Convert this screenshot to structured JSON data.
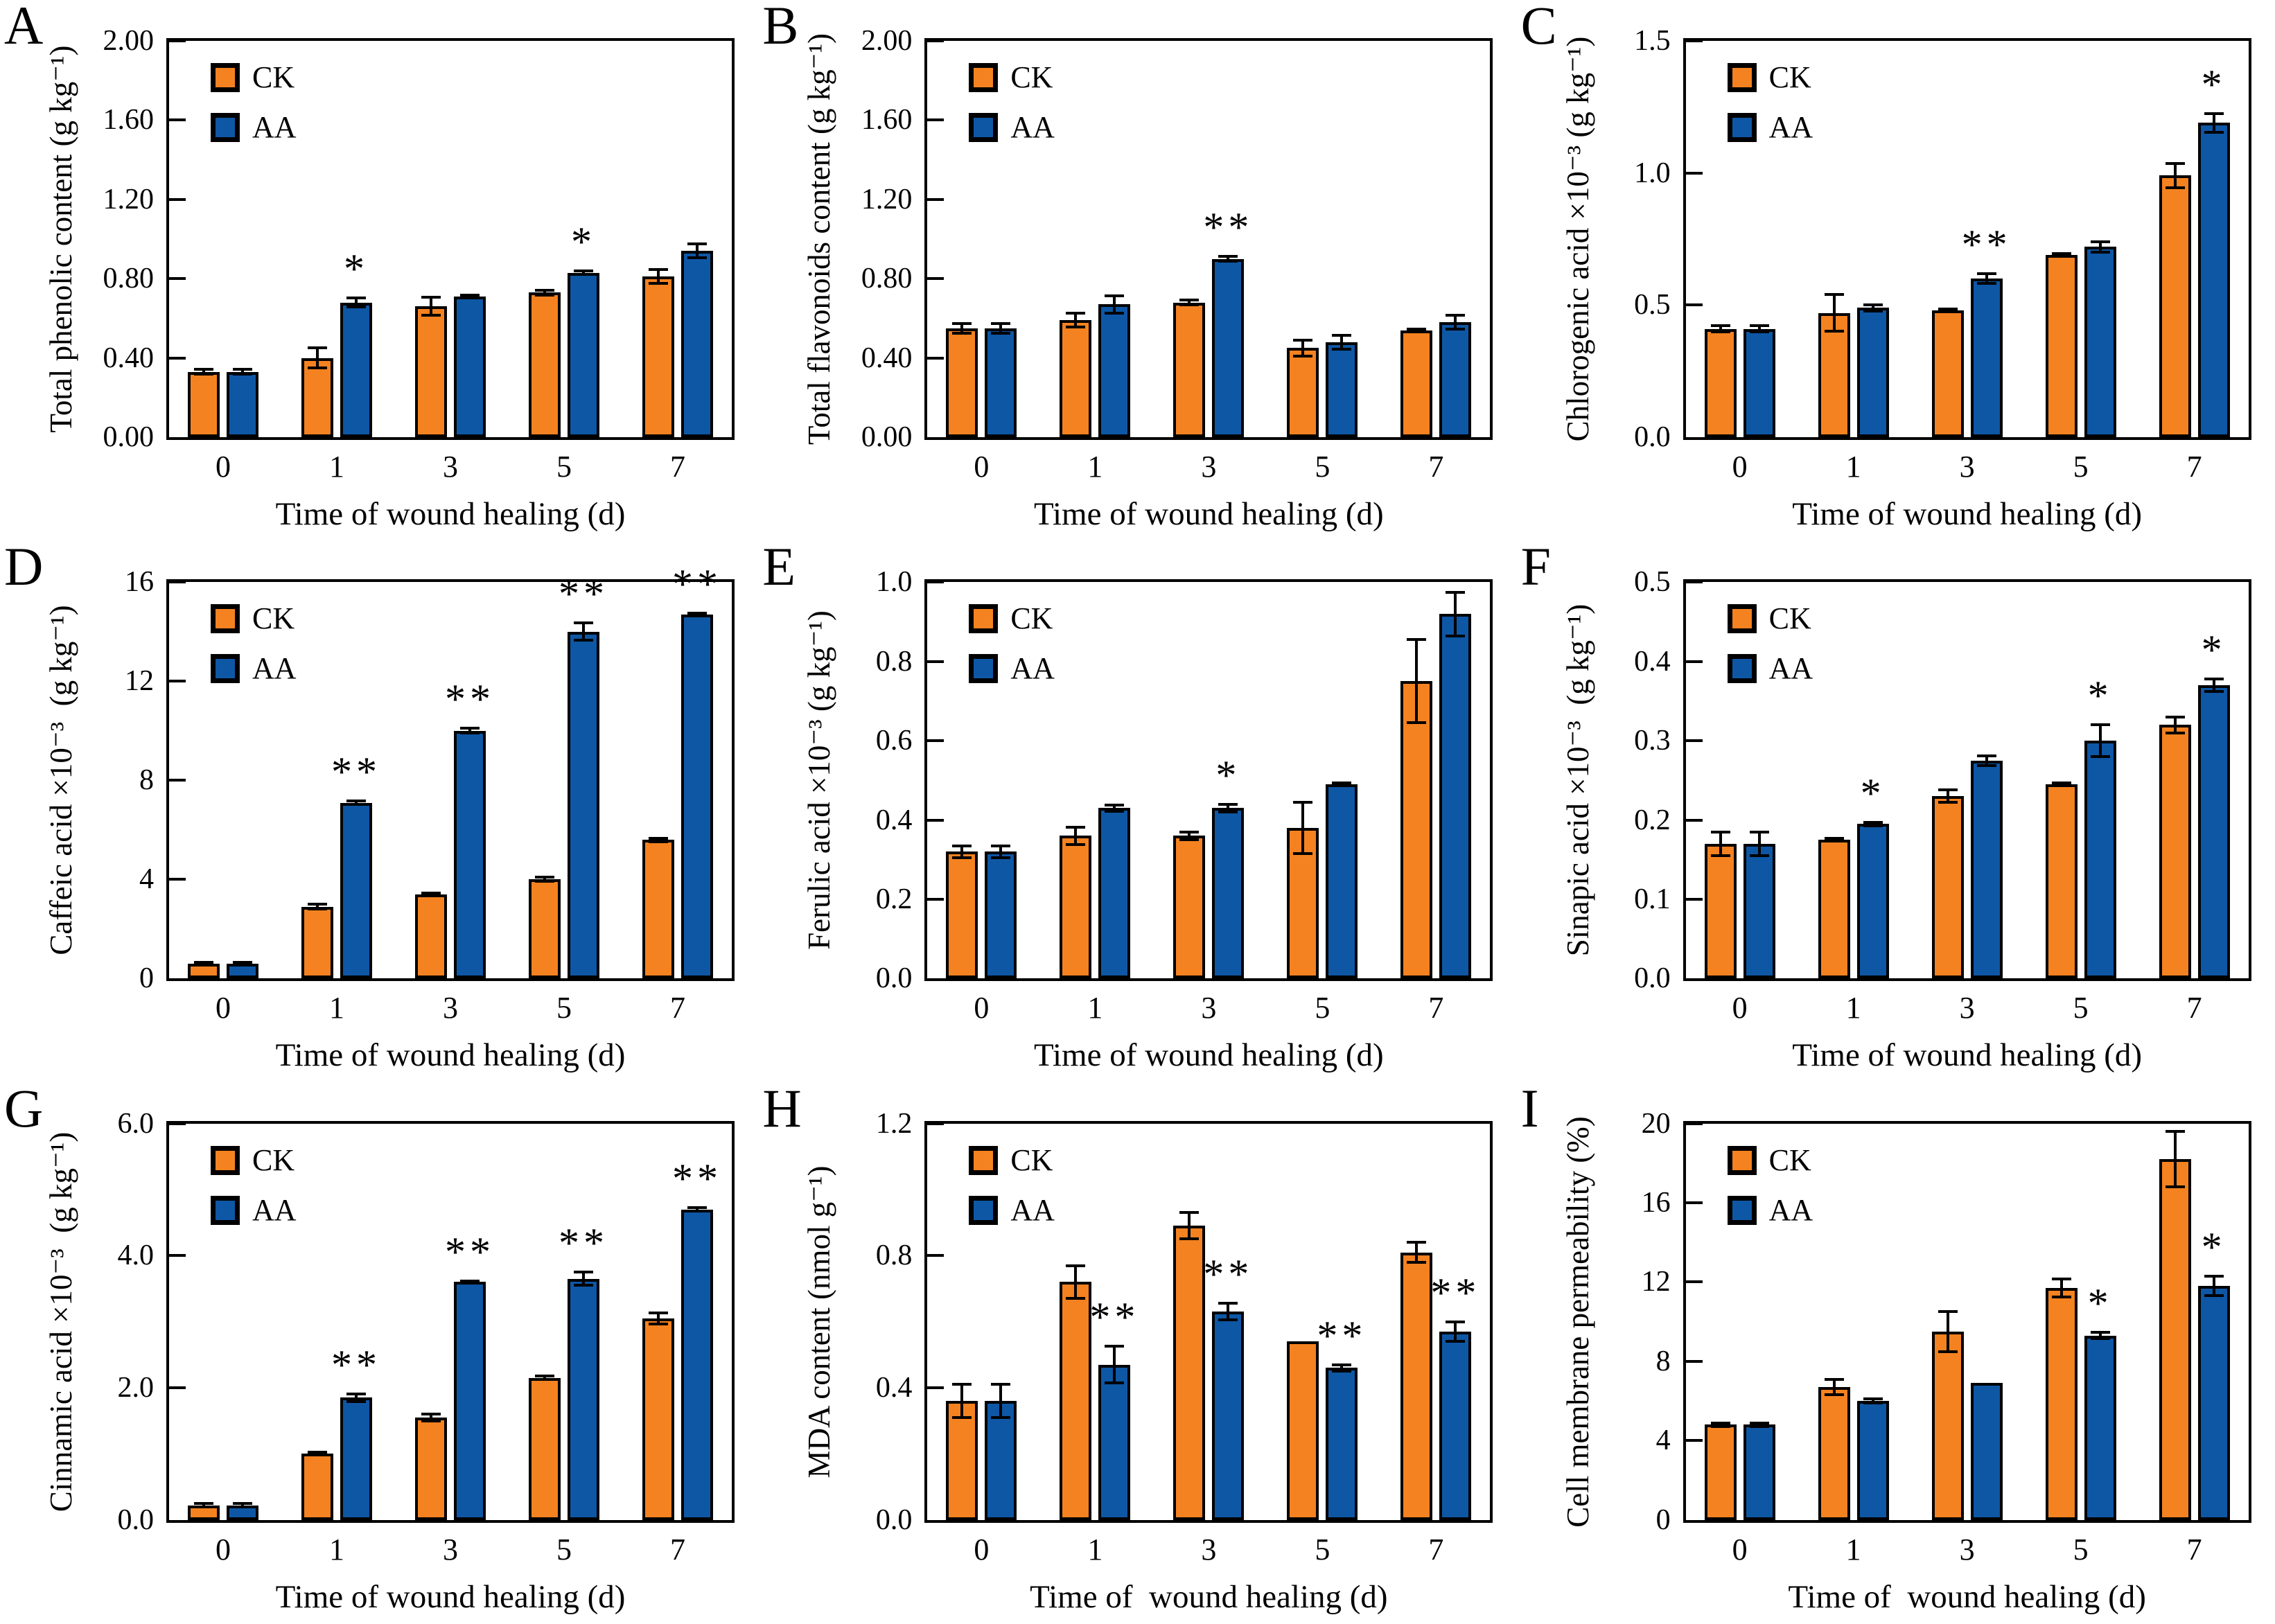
{
  "figure": {
    "background": "#ffffff",
    "axis_color": "#000000",
    "series_colors": {
      "CK": "#F58220",
      "AA": "#0E57A5"
    },
    "legend_labels": [
      "CK",
      "AA"
    ],
    "x_categories": [
      "0",
      "1",
      "3",
      "5",
      "7"
    ]
  },
  "chart_data": [
    {
      "panel": "A",
      "type": "bar",
      "ylabel": "Total phenolic content (g kg⁻¹)",
      "xlabel": "Time of wound healing (d)",
      "categories": [
        "0",
        "1",
        "3",
        "5",
        "7"
      ],
      "ylim": [
        0,
        2.0
      ],
      "yticks": [
        "0.00",
        "0.40",
        "0.80",
        "1.20",
        "1.60",
        "2.00"
      ],
      "legend": [
        "CK",
        "AA"
      ],
      "series": [
        {
          "name": "CK",
          "values": [
            0.33,
            0.4,
            0.66,
            0.73,
            0.81
          ],
          "errors": [
            0.012,
            0.05,
            0.045,
            0.012,
            0.035
          ]
        },
        {
          "name": "AA",
          "values": [
            0.33,
            0.68,
            0.71,
            0.83,
            0.94
          ],
          "errors": [
            0.012,
            0.022,
            0.008,
            0.01,
            0.035
          ]
        }
      ],
      "sig": [
        "",
        "*",
        "",
        "*",
        ""
      ]
    },
    {
      "panel": "B",
      "type": "bar",
      "ylabel": "Total flavonoids content (g kg⁻¹)",
      "xlabel": "Time of wound healing (d)",
      "categories": [
        "0",
        "1",
        "3",
        "5",
        "7"
      ],
      "ylim": [
        0,
        2.0
      ],
      "yticks": [
        "0.00",
        "0.40",
        "0.80",
        "1.20",
        "1.60",
        "2.00"
      ],
      "legend": [
        "CK",
        "AA"
      ],
      "series": [
        {
          "name": "CK",
          "values": [
            0.55,
            0.59,
            0.68,
            0.45,
            0.54
          ],
          "errors": [
            0.025,
            0.035,
            0.012,
            0.04,
            0.006
          ]
        },
        {
          "name": "AA",
          "values": [
            0.55,
            0.67,
            0.9,
            0.48,
            0.58
          ],
          "errors": [
            0.025,
            0.045,
            0.012,
            0.035,
            0.035
          ]
        }
      ],
      "sig": [
        "",
        "",
        "**",
        "",
        ""
      ]
    },
    {
      "panel": "C",
      "type": "bar",
      "ylabel": "Chlorogenic acid ×10⁻³ (g kg⁻¹)",
      "xlabel": "Time of wound healing (d)",
      "categories": [
        "0",
        "1",
        "3",
        "5",
        "7"
      ],
      "ylim": [
        0,
        1.5
      ],
      "yticks": [
        "0.0",
        "0.5",
        "1.0",
        "1.5"
      ],
      "legend": [
        "CK",
        "AA"
      ],
      "series": [
        {
          "name": "CK",
          "values": [
            0.41,
            0.47,
            0.48,
            0.69,
            0.99
          ],
          "errors": [
            0.012,
            0.07,
            0.005,
            0.004,
            0.045
          ]
        },
        {
          "name": "AA",
          "values": [
            0.41,
            0.49,
            0.6,
            0.72,
            1.19
          ],
          "errors": [
            0.012,
            0.012,
            0.018,
            0.02,
            0.035
          ]
        }
      ],
      "sig": [
        "",
        "",
        "**",
        "",
        "*"
      ]
    },
    {
      "panel": "D",
      "type": "bar",
      "ylabel": "Caffeic acid ×10⁻³  (g kg⁻¹)",
      "xlabel": "Time of wound healing (d)",
      "categories": [
        "0",
        "1",
        "3",
        "5",
        "7"
      ],
      "ylim": [
        0,
        16
      ],
      "yticks": [
        "0",
        "4",
        "8",
        "12",
        "16"
      ],
      "legend": [
        "CK",
        "AA"
      ],
      "series": [
        {
          "name": "CK",
          "values": [
            0.6,
            2.9,
            3.4,
            4.0,
            5.6
          ],
          "errors": [
            0.06,
            0.1,
            0.05,
            0.08,
            0.07
          ]
        },
        {
          "name": "AA",
          "values": [
            0.6,
            7.1,
            10.0,
            14.0,
            14.7
          ],
          "errors": [
            0.06,
            0.06,
            0.1,
            0.35,
            0.05
          ]
        }
      ],
      "sig": [
        "",
        "**",
        "**",
        "**",
        "**"
      ]
    },
    {
      "panel": "E",
      "type": "bar",
      "ylabel": "Ferulic acid ×10⁻³ (g kg⁻¹)",
      "xlabel": "Time of wound healing (d)",
      "categories": [
        "0",
        "1",
        "3",
        "5",
        "7"
      ],
      "ylim": [
        0,
        1.0
      ],
      "yticks": [
        "0.0",
        "0.2",
        "0.4",
        "0.6",
        "0.8",
        "1.0"
      ],
      "legend": [
        "CK",
        "AA"
      ],
      "series": [
        {
          "name": "CK",
          "values": [
            0.32,
            0.36,
            0.36,
            0.38,
            0.75
          ],
          "errors": [
            0.015,
            0.022,
            0.01,
            0.065,
            0.105
          ]
        },
        {
          "name": "AA",
          "values": [
            0.32,
            0.43,
            0.43,
            0.49,
            0.92
          ],
          "errors": [
            0.015,
            0.008,
            0.01,
            0.004,
            0.055
          ]
        }
      ],
      "sig": [
        "",
        "",
        "*",
        "",
        ""
      ]
    },
    {
      "panel": "F",
      "type": "bar",
      "ylabel": "Sinapic acid ×10⁻³  (g kg⁻¹)",
      "xlabel": "Time of wound healing (d)",
      "categories": [
        "0",
        "1",
        "3",
        "5",
        "7"
      ],
      "ylim": [
        0,
        0.5
      ],
      "yticks": [
        "0.0",
        "0.1",
        "0.2",
        "0.3",
        "0.4",
        "0.5"
      ],
      "legend": [
        "CK",
        "AA"
      ],
      "series": [
        {
          "name": "CK",
          "values": [
            0.17,
            0.175,
            0.23,
            0.245,
            0.32
          ],
          "errors": [
            0.015,
            0.002,
            0.008,
            0.002,
            0.01
          ]
        },
        {
          "name": "AA",
          "values": [
            0.17,
            0.195,
            0.275,
            0.3,
            0.37
          ],
          "errors": [
            0.015,
            0.002,
            0.006,
            0.02,
            0.008
          ]
        }
      ],
      "sig": [
        "",
        "*",
        "",
        "*",
        "*"
      ]
    },
    {
      "panel": "G",
      "type": "bar",
      "ylabel": "Cinnamic acid ×10⁻³  (g kg⁻¹)",
      "xlabel": "Time of wound healing (d)",
      "categories": [
        "0",
        "1",
        "3",
        "5",
        "7"
      ],
      "ylim": [
        0,
        6.0
      ],
      "yticks": [
        "0.0",
        "2.0",
        "4.0",
        "6.0"
      ],
      "legend": [
        "CK",
        "AA"
      ],
      "series": [
        {
          "name": "CK",
          "values": [
            0.22,
            1.0,
            1.55,
            2.15,
            3.05
          ],
          "errors": [
            0.025,
            0.02,
            0.05,
            0.025,
            0.08
          ]
        },
        {
          "name": "AA",
          "values": [
            0.22,
            1.85,
            3.6,
            3.65,
            4.7
          ],
          "errors": [
            0.025,
            0.06,
            0.02,
            0.1,
            0.03
          ]
        }
      ],
      "sig": [
        "",
        "**",
        "**",
        "**",
        "**"
      ]
    },
    {
      "panel": "H",
      "type": "bar",
      "ylabel": "MDA content (nmol g⁻¹)",
      "xlabel": "Time of  wound healing (d)",
      "categories": [
        "0",
        "1",
        "3",
        "5",
        "7"
      ],
      "ylim": [
        0,
        1.2
      ],
      "yticks": [
        "0.0",
        "0.4",
        "0.8",
        "1.2"
      ],
      "legend": [
        "CK",
        "AA"
      ],
      "series": [
        {
          "name": "CK",
          "values": [
            0.36,
            0.72,
            0.89,
            0.54,
            0.81
          ],
          "errors": [
            0.05,
            0.05,
            0.04,
            0,
            0.03
          ]
        },
        {
          "name": "AA",
          "values": [
            0.36,
            0.47,
            0.63,
            0.46,
            0.57
          ],
          "errors": [
            0.05,
            0.055,
            0.025,
            0.01,
            0.03
          ]
        }
      ],
      "sig": [
        "",
        "**",
        "**",
        "**",
        "**"
      ]
    },
    {
      "panel": "I",
      "type": "bar",
      "ylabel": "Cell membrane permeability (%)",
      "xlabel": "Time of  wound healing (d)",
      "categories": [
        "0",
        "1",
        "3",
        "5",
        "7"
      ],
      "ylim": [
        0,
        20
      ],
      "yticks": [
        "0",
        "4",
        "8",
        "12",
        "16",
        "20"
      ],
      "legend": [
        "CK",
        "AA"
      ],
      "series": [
        {
          "name": "CK",
          "values": [
            4.8,
            6.7,
            9.5,
            11.7,
            18.2
          ],
          "errors": [
            0.08,
            0.4,
            1.0,
            0.45,
            1.4
          ]
        },
        {
          "name": "AA",
          "values": [
            4.8,
            6.0,
            6.9,
            9.3,
            11.8
          ],
          "errors": [
            0.08,
            0.12,
            0,
            0.15,
            0.5
          ]
        }
      ],
      "sig": [
        "",
        "",
        "",
        "*",
        "*"
      ]
    }
  ]
}
